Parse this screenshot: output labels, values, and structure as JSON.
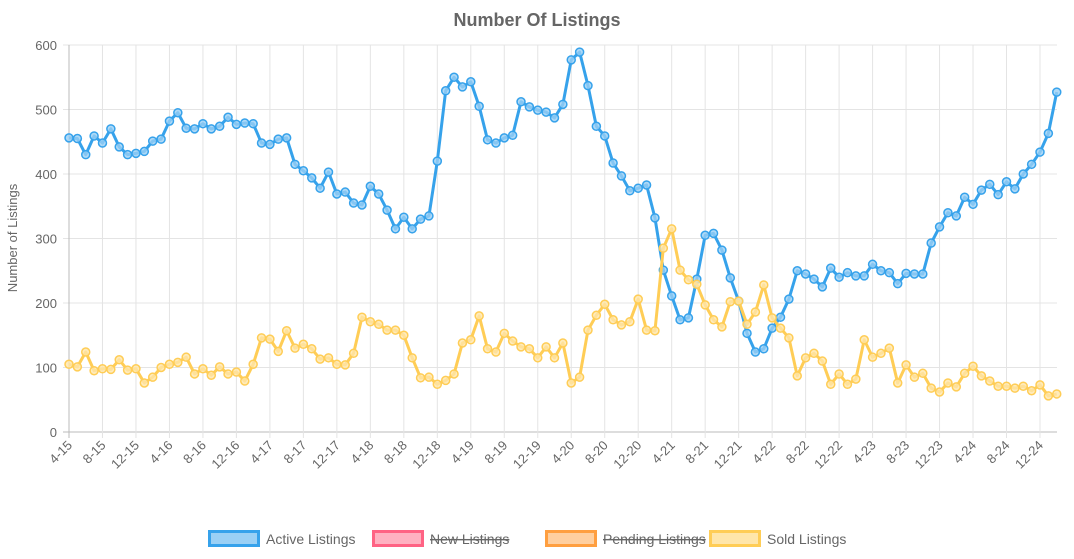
{
  "chart_data": {
    "type": "line",
    "title": "Number Of Listings",
    "xlabel": "",
    "ylabel": "Number of Listings",
    "ylim": [
      0,
      600
    ],
    "y_ticks": [
      0,
      100,
      200,
      300,
      400,
      500,
      600
    ],
    "x_tick_every": 4,
    "x_tick_labels": [
      "4-15",
      "8-15",
      "12-15",
      "4-16",
      "8-16",
      "12-16",
      "4-17",
      "8-17",
      "12-17",
      "4-18",
      "8-18",
      "12-18",
      "4-19",
      "8-19",
      "12-19",
      "4-20",
      "8-20",
      "12-20",
      "4-21",
      "8-21",
      "12-21",
      "4-22",
      "8-22",
      "12-22",
      "4-23",
      "8-23",
      "12-23",
      "4-24",
      "8-24",
      "12-24"
    ],
    "grid": true,
    "legend_position": "bottom",
    "series": [
      {
        "name": "Active Listings",
        "color": "#36a2eb",
        "fill": "#9ad0f5",
        "hidden": false,
        "values": [
          456,
          455,
          430,
          459,
          448,
          470,
          442,
          430,
          432,
          435,
          451,
          454,
          482,
          495,
          471,
          470,
          478,
          470,
          474,
          488,
          477,
          479,
          478,
          448,
          446,
          454,
          456,
          415,
          405,
          394,
          378,
          403,
          369,
          372,
          355,
          352,
          381,
          369,
          344,
          315,
          333,
          315,
          330,
          335,
          420,
          529,
          550,
          535,
          543,
          505,
          453,
          448,
          456,
          460,
          512,
          504,
          499,
          496,
          487,
          508,
          577,
          589,
          537,
          474,
          459,
          417,
          397,
          374,
          378,
          383,
          332,
          251,
          211,
          174,
          177,
          237,
          305,
          308,
          282,
          239,
          203,
          153,
          124,
          129,
          161,
          178,
          206,
          250,
          245,
          237,
          225,
          254,
          240,
          247,
          242,
          242,
          260,
          250,
          247,
          230,
          246,
          245,
          245,
          293,
          318,
          340,
          335,
          364,
          353,
          375,
          384,
          368,
          388,
          377,
          400,
          415,
          434,
          463,
          527
        ]
      },
      {
        "name": "New Listings",
        "color": "#ff6384",
        "fill": "#ffb1c1",
        "hidden": true,
        "values": []
      },
      {
        "name": "Pending Listings",
        "color": "#ff9f40",
        "fill": "#ffcf9f",
        "hidden": true,
        "values": []
      },
      {
        "name": "Sold Listings",
        "color": "#ffcd56",
        "fill": "#ffe6aa",
        "hidden": false,
        "values": [
          105,
          101,
          124,
          95,
          98,
          97,
          112,
          96,
          98,
          76,
          85,
          100,
          105,
          108,
          116,
          90,
          98,
          88,
          101,
          90,
          93,
          79,
          105,
          146,
          144,
          125,
          157,
          130,
          136,
          129,
          113,
          115,
          105,
          104,
          122,
          178,
          171,
          167,
          158,
          158,
          150,
          115,
          84,
          85,
          74,
          80,
          90,
          138,
          143,
          180,
          129,
          124,
          153,
          141,
          132,
          129,
          115,
          132,
          115,
          138,
          76,
          85,
          158,
          181,
          198,
          174,
          166,
          171,
          206,
          158,
          157,
          285,
          315,
          251,
          236,
          229,
          197,
          174,
          163,
          202,
          203,
          167,
          186,
          228,
          177,
          161,
          146,
          87,
          115,
          122,
          110,
          74,
          90,
          74,
          82,
          143,
          116,
          122,
          130,
          76,
          104,
          85,
          91,
          68,
          62,
          76,
          70,
          91,
          102,
          87,
          79,
          71,
          71,
          68,
          71,
          64,
          73,
          56,
          59
        ]
      }
    ]
  }
}
